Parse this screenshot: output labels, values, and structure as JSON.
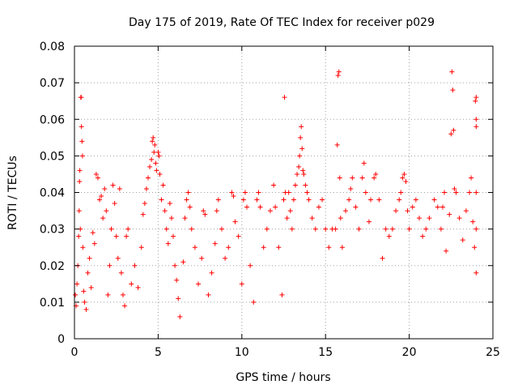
{
  "chart_data": {
    "type": "scatter",
    "title": "Day 175 of 2019, Rate Of TEC Index for receiver p029",
    "xlabel": "GPS time / hours",
    "ylabel": "ROTI / TECUs",
    "xlim": [
      0,
      25
    ],
    "ylim": [
      0,
      0.08
    ],
    "x_ticks": [
      0,
      5,
      10,
      15,
      20,
      25
    ],
    "x_tick_labels": [
      "0",
      "5",
      "10",
      "15",
      "20",
      "25"
    ],
    "y_ticks": [
      0,
      0.01,
      0.02,
      0.03,
      0.04,
      0.05,
      0.06,
      0.07,
      0.08
    ],
    "y_tick_labels": [
      "0",
      "0.01",
      "0.02",
      "0.03",
      "0.04",
      "0.05",
      "0.06",
      "0.07",
      "0.08"
    ],
    "grid": true,
    "marker": "+",
    "marker_color": "#ff0000",
    "series": [
      {
        "name": "ROTI",
        "points": [
          [
            0.05,
            0.012
          ],
          [
            0.1,
            0.009
          ],
          [
            0.15,
            0.015
          ],
          [
            0.2,
            0.02
          ],
          [
            0.25,
            0.028
          ],
          [
            0.28,
            0.035
          ],
          [
            0.3,
            0.043
          ],
          [
            0.32,
            0.046
          ],
          [
            0.35,
            0.03
          ],
          [
            0.38,
            0.066
          ],
          [
            0.4,
            0.066
          ],
          [
            0.42,
            0.058
          ],
          [
            0.45,
            0.054
          ],
          [
            0.48,
            0.05
          ],
          [
            0.5,
            0.025
          ],
          [
            0.55,
            0.013
          ],
          [
            0.6,
            0.01
          ],
          [
            0.7,
            0.008
          ],
          [
            0.8,
            0.018
          ],
          [
            0.9,
            0.022
          ],
          [
            1.0,
            0.014
          ],
          [
            1.1,
            0.029
          ],
          [
            1.2,
            0.026
          ],
          [
            1.3,
            0.045
          ],
          [
            1.4,
            0.044
          ],
          [
            1.5,
            0.038
          ],
          [
            1.6,
            0.039
          ],
          [
            1.7,
            0.033
          ],
          [
            1.8,
            0.041
          ],
          [
            1.9,
            0.035
          ],
          [
            2.0,
            0.012
          ],
          [
            2.1,
            0.02
          ],
          [
            2.2,
            0.03
          ],
          [
            2.3,
            0.042
          ],
          [
            2.4,
            0.037
          ],
          [
            2.5,
            0.028
          ],
          [
            2.6,
            0.022
          ],
          [
            2.7,
            0.041
          ],
          [
            2.8,
            0.018
          ],
          [
            2.9,
            0.012
          ],
          [
            3.0,
            0.009
          ],
          [
            3.1,
            0.028
          ],
          [
            3.2,
            0.03
          ],
          [
            3.4,
            0.015
          ],
          [
            3.6,
            0.02
          ],
          [
            3.8,
            0.014
          ],
          [
            4.0,
            0.025
          ],
          [
            4.1,
            0.034
          ],
          [
            4.2,
            0.037
          ],
          [
            4.3,
            0.041
          ],
          [
            4.4,
            0.044
          ],
          [
            4.5,
            0.047
          ],
          [
            4.6,
            0.049
          ],
          [
            4.65,
            0.054
          ],
          [
            4.7,
            0.055
          ],
          [
            4.75,
            0.051
          ],
          [
            4.8,
            0.053
          ],
          [
            4.85,
            0.048
          ],
          [
            4.9,
            0.046
          ],
          [
            5.0,
            0.051
          ],
          [
            5.05,
            0.05
          ],
          [
            5.1,
            0.045
          ],
          [
            5.2,
            0.038
          ],
          [
            5.3,
            0.042
          ],
          [
            5.4,
            0.035
          ],
          [
            5.5,
            0.03
          ],
          [
            5.6,
            0.026
          ],
          [
            5.7,
            0.037
          ],
          [
            5.8,
            0.033
          ],
          [
            5.9,
            0.028
          ],
          [
            6.0,
            0.02
          ],
          [
            6.1,
            0.016
          ],
          [
            6.2,
            0.011
          ],
          [
            6.3,
            0.006
          ],
          [
            6.5,
            0.021
          ],
          [
            6.6,
            0.033
          ],
          [
            6.7,
            0.038
          ],
          [
            6.8,
            0.04
          ],
          [
            6.9,
            0.036
          ],
          [
            7.0,
            0.03
          ],
          [
            7.2,
            0.025
          ],
          [
            7.4,
            0.015
          ],
          [
            7.6,
            0.022
          ],
          [
            7.7,
            0.035
          ],
          [
            7.8,
            0.034
          ],
          [
            8.0,
            0.012
          ],
          [
            8.2,
            0.018
          ],
          [
            8.4,
            0.026
          ],
          [
            8.5,
            0.035
          ],
          [
            8.6,
            0.038
          ],
          [
            8.8,
            0.03
          ],
          [
            9.0,
            0.022
          ],
          [
            9.2,
            0.025
          ],
          [
            9.4,
            0.04
          ],
          [
            9.5,
            0.039
          ],
          [
            9.6,
            0.032
          ],
          [
            9.8,
            0.028
          ],
          [
            10.0,
            0.015
          ],
          [
            10.1,
            0.038
          ],
          [
            10.2,
            0.04
          ],
          [
            10.3,
            0.036
          ],
          [
            10.5,
            0.02
          ],
          [
            10.7,
            0.01
          ],
          [
            10.9,
            0.038
          ],
          [
            11.0,
            0.04
          ],
          [
            11.1,
            0.036
          ],
          [
            11.3,
            0.025
          ],
          [
            11.5,
            0.03
          ],
          [
            11.7,
            0.035
          ],
          [
            11.9,
            0.042
          ],
          [
            12.0,
            0.036
          ],
          [
            12.2,
            0.025
          ],
          [
            12.4,
            0.012
          ],
          [
            12.5,
            0.038
          ],
          [
            12.55,
            0.066
          ],
          [
            12.6,
            0.04
          ],
          [
            12.7,
            0.033
          ],
          [
            12.8,
            0.04
          ],
          [
            12.9,
            0.035
          ],
          [
            13.0,
            0.03
          ],
          [
            13.1,
            0.038
          ],
          [
            13.2,
            0.042
          ],
          [
            13.3,
            0.045
          ],
          [
            13.4,
            0.047
          ],
          [
            13.45,
            0.05
          ],
          [
            13.5,
            0.055
          ],
          [
            13.55,
            0.058
          ],
          [
            13.6,
            0.052
          ],
          [
            13.65,
            0.046
          ],
          [
            13.7,
            0.045
          ],
          [
            13.8,
            0.042
          ],
          [
            13.9,
            0.04
          ],
          [
            14.0,
            0.038
          ],
          [
            14.2,
            0.033
          ],
          [
            14.4,
            0.03
          ],
          [
            14.6,
            0.036
          ],
          [
            14.8,
            0.038
          ],
          [
            15.0,
            0.03
          ],
          [
            15.2,
            0.025
          ],
          [
            15.4,
            0.03
          ],
          [
            15.6,
            0.03
          ],
          [
            15.7,
            0.053
          ],
          [
            15.75,
            0.072
          ],
          [
            15.8,
            0.073
          ],
          [
            15.85,
            0.044
          ],
          [
            15.9,
            0.033
          ],
          [
            16.0,
            0.025
          ],
          [
            16.2,
            0.035
          ],
          [
            16.4,
            0.038
          ],
          [
            16.5,
            0.041
          ],
          [
            16.6,
            0.044
          ],
          [
            16.8,
            0.036
          ],
          [
            17.0,
            0.03
          ],
          [
            17.2,
            0.044
          ],
          [
            17.3,
            0.048
          ],
          [
            17.4,
            0.04
          ],
          [
            17.6,
            0.032
          ],
          [
            17.7,
            0.038
          ],
          [
            17.9,
            0.044
          ],
          [
            18.0,
            0.045
          ],
          [
            18.2,
            0.038
          ],
          [
            18.4,
            0.022
          ],
          [
            18.6,
            0.03
          ],
          [
            18.8,
            0.028
          ],
          [
            19.0,
            0.03
          ],
          [
            19.2,
            0.035
          ],
          [
            19.4,
            0.038
          ],
          [
            19.5,
            0.04
          ],
          [
            19.6,
            0.044
          ],
          [
            19.7,
            0.045
          ],
          [
            19.8,
            0.043
          ],
          [
            19.9,
            0.035
          ],
          [
            20.0,
            0.03
          ],
          [
            20.2,
            0.036
          ],
          [
            20.4,
            0.038
          ],
          [
            20.6,
            0.033
          ],
          [
            20.8,
            0.028
          ],
          [
            21.0,
            0.03
          ],
          [
            21.2,
            0.033
          ],
          [
            21.5,
            0.038
          ],
          [
            21.7,
            0.036
          ],
          [
            21.9,
            0.03
          ],
          [
            22.0,
            0.036
          ],
          [
            22.1,
            0.04
          ],
          [
            22.2,
            0.024
          ],
          [
            22.4,
            0.034
          ],
          [
            22.5,
            0.056
          ],
          [
            22.55,
            0.073
          ],
          [
            22.6,
            0.068
          ],
          [
            22.65,
            0.057
          ],
          [
            22.7,
            0.041
          ],
          [
            22.8,
            0.04
          ],
          [
            23.0,
            0.033
          ],
          [
            23.2,
            0.027
          ],
          [
            23.4,
            0.035
          ],
          [
            23.6,
            0.04
          ],
          [
            23.7,
            0.044
          ],
          [
            23.8,
            0.032
          ],
          [
            23.9,
            0.025
          ],
          [
            23.95,
            0.065
          ],
          [
            24.0,
            0.066
          ],
          [
            24.0,
            0.06
          ],
          [
            24.0,
            0.058
          ],
          [
            24.0,
            0.04
          ],
          [
            24.0,
            0.03
          ],
          [
            24.0,
            0.018
          ]
        ]
      }
    ]
  }
}
